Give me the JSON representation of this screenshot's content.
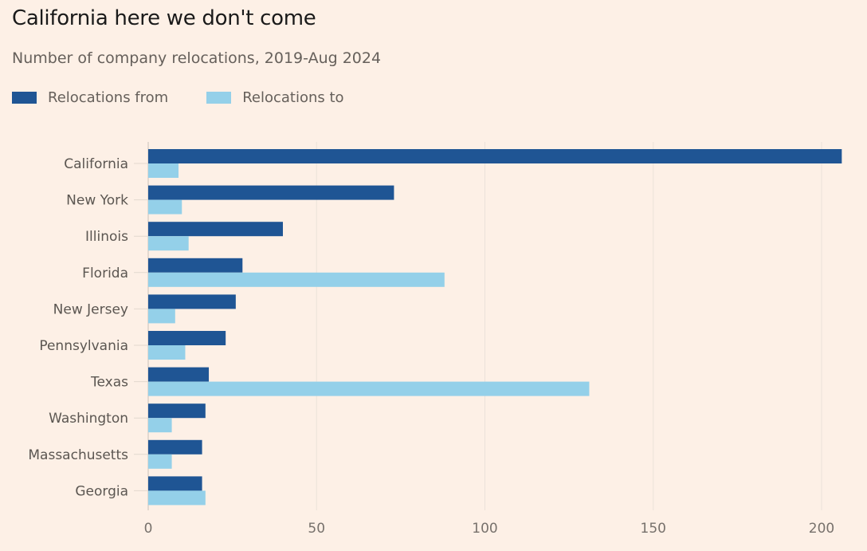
{
  "chart_data": {
    "type": "bar",
    "orientation": "horizontal",
    "title": "California here we don't come",
    "subtitle": "Number of company relocations, 2019-Aug 2024",
    "xlabel": "",
    "ylabel": "",
    "xlim": [
      0,
      206
    ],
    "xticks": [
      0,
      50,
      100,
      150,
      200
    ],
    "xtick_labels": [
      "0",
      "50",
      "100",
      "150",
      "200"
    ],
    "grid": true,
    "legend_position": "top-left",
    "categories": [
      "California",
      "New York",
      "Illinois",
      "Florida",
      "New Jersey",
      "Pennsylvania",
      "Texas",
      "Washington",
      "Massachusetts",
      "Georgia"
    ],
    "series": [
      {
        "name": "Relocations from",
        "color": "#1f5594",
        "values": [
          206,
          73,
          40,
          28,
          26,
          23,
          18,
          17,
          16,
          16
        ]
      },
      {
        "name": "Relocations to",
        "color": "#94d0e9",
        "values": [
          9,
          10,
          12,
          88,
          8,
          11,
          131,
          7,
          7,
          17
        ]
      }
    ]
  }
}
